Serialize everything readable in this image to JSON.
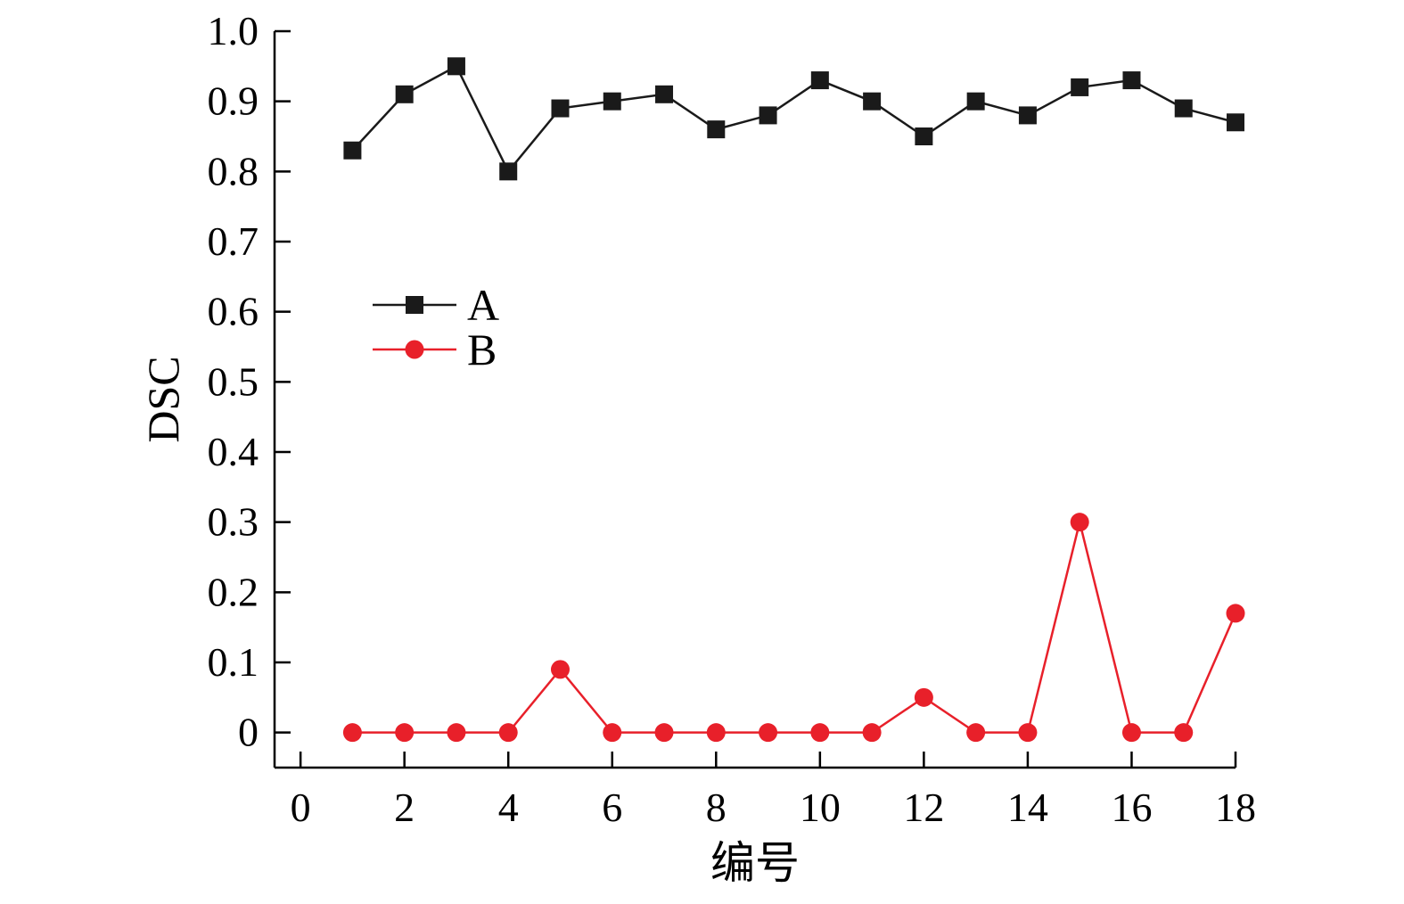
{
  "chart_data": {
    "type": "line",
    "title": "",
    "xlabel": "编号",
    "ylabel": "DSC",
    "xlim": [
      -0.5,
      18
    ],
    "ylim": [
      -0.05,
      1.0
    ],
    "xticks": [
      0,
      2,
      4,
      6,
      8,
      10,
      12,
      14,
      16,
      18
    ],
    "xtick_labels": [
      "0",
      "2",
      "4",
      "6",
      "8",
      "10",
      "12",
      "14",
      "16",
      "18"
    ],
    "yticks": [
      0,
      0.1,
      0.2,
      0.3,
      0.4,
      0.5,
      0.6,
      0.7,
      0.8,
      0.9,
      1.0
    ],
    "ytick_labels": [
      "0",
      "0.1",
      "0.2",
      "0.3",
      "0.4",
      "0.5",
      "0.6",
      "0.7",
      "0.8",
      "0.9",
      "1.0"
    ],
    "grid": false,
    "legend_position": "left",
    "x": [
      1,
      2,
      3,
      4,
      5,
      6,
      7,
      8,
      9,
      10,
      11,
      12,
      13,
      14,
      15,
      16,
      17,
      18
    ],
    "series": [
      {
        "name": "A",
        "marker": "square",
        "color": "#1a1a1a",
        "values": [
          0.83,
          0.91,
          0.95,
          0.8,
          0.89,
          0.9,
          0.91,
          0.86,
          0.88,
          0.93,
          0.9,
          0.85,
          0.9,
          0.88,
          0.92,
          0.93,
          0.89,
          0.87
        ]
      },
      {
        "name": "B",
        "marker": "circle",
        "color": "#e8202a",
        "values": [
          0,
          0,
          0,
          0,
          0.09,
          0,
          0,
          0,
          0,
          0,
          0,
          0.05,
          0,
          0,
          0.3,
          0,
          0,
          0.17
        ]
      }
    ]
  }
}
